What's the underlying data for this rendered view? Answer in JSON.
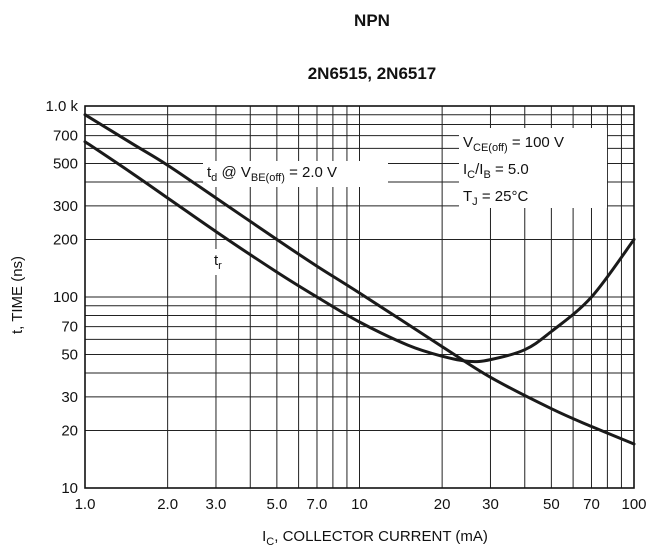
{
  "chart_data": {
    "type": "line",
    "title": "NPN",
    "subtitle": "2N6515, 2N6517",
    "xlabel_parts": [
      "I",
      "C",
      ", COLLECTOR CURRENT (mA)"
    ],
    "ylabel": "t, TIME (ns)",
    "xscale": "log",
    "yscale": "log",
    "xlim": [
      1,
      100
    ],
    "ylim": [
      10,
      1000
    ],
    "grid": true,
    "x_ticks": [
      1,
      2,
      3,
      5,
      7,
      10,
      20,
      30,
      50,
      70,
      100
    ],
    "x_tick_labels": [
      "1.0",
      "2.0",
      "3.0",
      "5.0",
      "7.0",
      "10",
      "20",
      "30",
      "50",
      "70",
      "100"
    ],
    "y_ticks": [
      10,
      20,
      30,
      50,
      70,
      100,
      200,
      300,
      500,
      700,
      1000
    ],
    "y_tick_labels": [
      "10",
      "20",
      "30",
      "50",
      "70",
      "100",
      "200",
      "300",
      "500",
      "700",
      "1.0 k"
    ],
    "series": [
      {
        "name_parts": [
          "t",
          "d",
          " @ V",
          "BE(off)",
          " = 2.0 V"
        ],
        "x": [
          1,
          1.5,
          2,
          3,
          5,
          7,
          10,
          20,
          30,
          50,
          70,
          100
        ],
        "y": [
          900,
          630,
          490,
          330,
          200,
          145,
          105,
          55,
          38,
          26,
          21,
          17
        ]
      },
      {
        "name_parts": [
          "t",
          "r"
        ],
        "x": [
          1,
          1.5,
          2,
          3,
          5,
          7,
          10,
          15,
          20,
          25,
          30,
          40,
          50,
          70,
          100
        ],
        "y": [
          650,
          440,
          330,
          220,
          135,
          100,
          74,
          56,
          49,
          46,
          47,
          53,
          66,
          100,
          200
        ]
      }
    ],
    "annotation": {
      "line1": [
        "V",
        "CE(off)",
        " = 100 V"
      ],
      "line2": [
        "I",
        "C",
        "/I",
        "B",
        " = 5.0"
      ],
      "line3": [
        "T",
        "J",
        " = 25°C"
      ]
    }
  }
}
